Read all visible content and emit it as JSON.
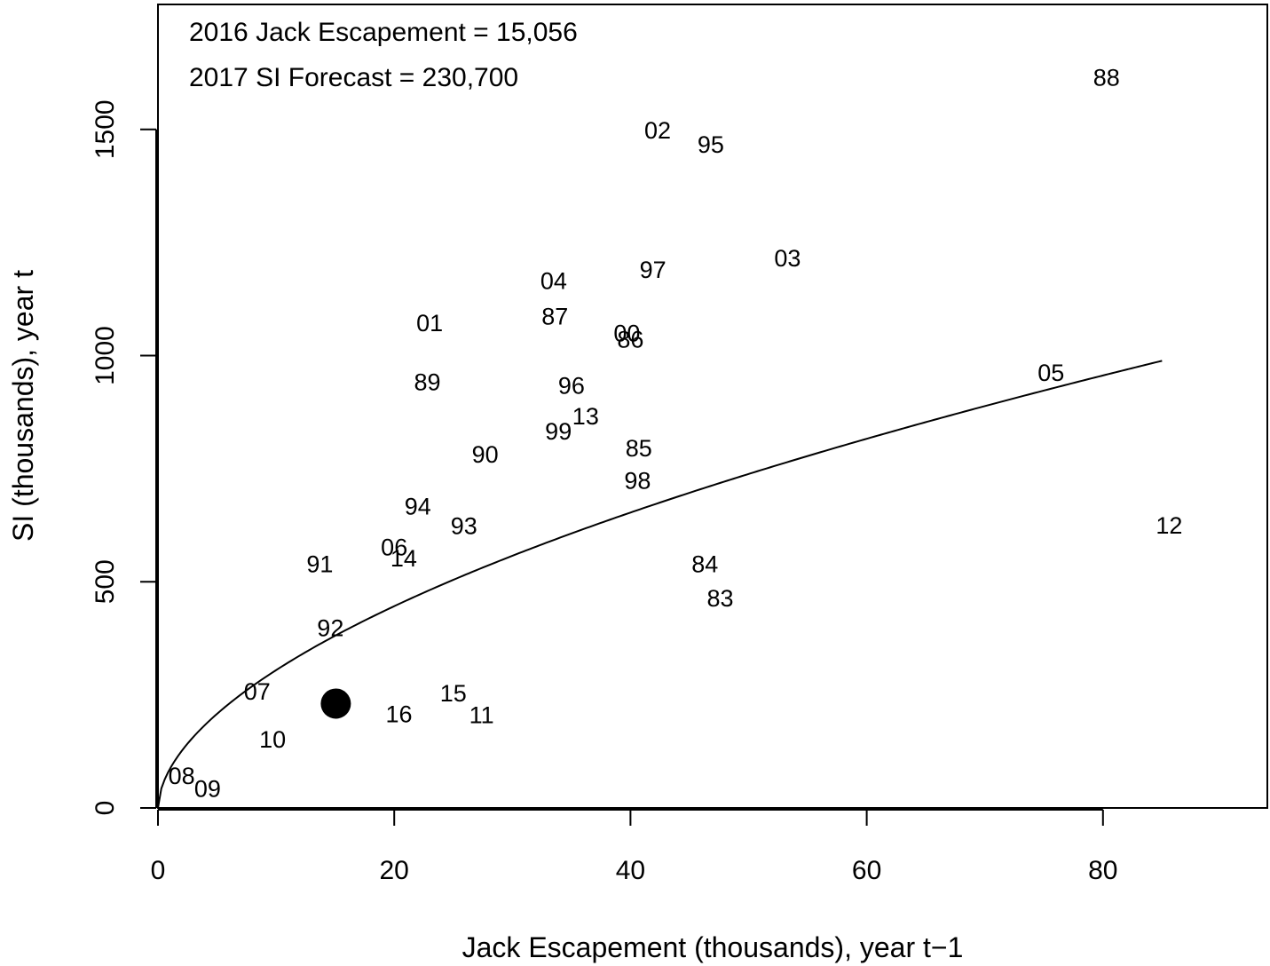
{
  "chart_data": {
    "type": "scatter",
    "xlabel": "Jack Escapement (thousands), year t−1",
    "ylabel": "SI (thousands), year t",
    "xlim": [
      0,
      94
    ],
    "ylim": [
      0,
      1770
    ],
    "x_ticks": [
      0,
      20,
      40,
      60,
      80
    ],
    "y_ticks": [
      0,
      500,
      1000,
      1500
    ],
    "grid": false,
    "annotations": [
      "2016 Jack Escapement = 15,056",
      "2017 SI Forecast = 230,700"
    ],
    "points": [
      {
        "label": "88",
        "x": 80.3,
        "y": 1614
      },
      {
        "label": "02",
        "x": 42.3,
        "y": 1498
      },
      {
        "label": "95",
        "x": 46.8,
        "y": 1466
      },
      {
        "label": "03",
        "x": 53.3,
        "y": 1215
      },
      {
        "label": "97",
        "x": 41.9,
        "y": 1189
      },
      {
        "label": "04",
        "x": 33.5,
        "y": 1165
      },
      {
        "label": "87",
        "x": 33.6,
        "y": 1086
      },
      {
        "label": "01",
        "x": 23.0,
        "y": 1072
      },
      {
        "label": "00",
        "x": 39.7,
        "y": 1049
      },
      {
        "label": "86",
        "x": 40.0,
        "y": 1035
      },
      {
        "label": "05",
        "x": 75.6,
        "y": 962
      },
      {
        "label": "89",
        "x": 22.8,
        "y": 941
      },
      {
        "label": "96",
        "x": 35.0,
        "y": 933
      },
      {
        "label": "13",
        "x": 36.2,
        "y": 866
      },
      {
        "label": "99",
        "x": 33.9,
        "y": 832
      },
      {
        "label": "85",
        "x": 40.7,
        "y": 795
      },
      {
        "label": "90",
        "x": 27.7,
        "y": 781
      },
      {
        "label": "98",
        "x": 40.6,
        "y": 723
      },
      {
        "label": "94",
        "x": 22.0,
        "y": 666
      },
      {
        "label": "93",
        "x": 25.9,
        "y": 623
      },
      {
        "label": "12",
        "x": 85.6,
        "y": 624
      },
      {
        "label": "06",
        "x": 20.0,
        "y": 576
      },
      {
        "label": "14",
        "x": 20.8,
        "y": 552
      },
      {
        "label": "91",
        "x": 13.7,
        "y": 539
      },
      {
        "label": "84",
        "x": 46.3,
        "y": 539
      },
      {
        "label": "83",
        "x": 47.6,
        "y": 463
      },
      {
        "label": "92",
        "x": 14.6,
        "y": 397
      },
      {
        "label": "07",
        "x": 8.4,
        "y": 257
      },
      {
        "label": "15",
        "x": 25.0,
        "y": 253
      },
      {
        "label": "16",
        "x": 20.4,
        "y": 207
      },
      {
        "label": "11",
        "x": 27.4,
        "y": 205
      },
      {
        "label": "10",
        "x": 9.7,
        "y": 151
      },
      {
        "label": "08",
        "x": 2.0,
        "y": 71
      },
      {
        "label": "09",
        "x": 4.2,
        "y": 42
      }
    ],
    "forecast_point": {
      "x": 15.056,
      "y": 230.7
    },
    "fit_curve": {
      "form": "y = a * x^b",
      "a": 85.86,
      "b": 0.55,
      "x_range": [
        0,
        85
      ]
    }
  }
}
